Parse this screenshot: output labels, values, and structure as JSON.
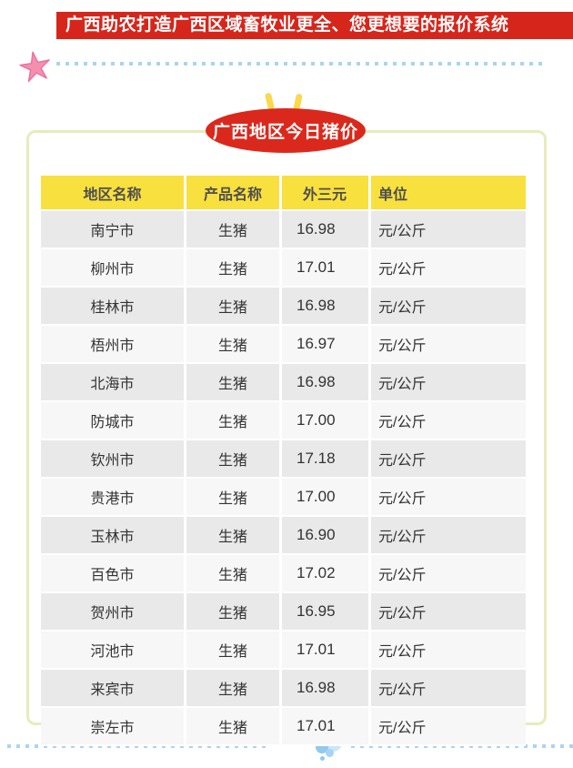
{
  "banner": {
    "text": "广西助农打造广西区域畜牧业更全、您更想要的报价系统"
  },
  "badge": {
    "label": "广西地区今日猪价"
  },
  "chart_data": {
    "type": "table",
    "title": "广西地区今日猪价",
    "columns": [
      "地区名称",
      "产品名称",
      "外三元",
      "单位"
    ],
    "rows": [
      [
        "南宁市",
        "生猪",
        "16.98",
        "元/公斤"
      ],
      [
        "柳州市",
        "生猪",
        "17.01",
        "元/公斤"
      ],
      [
        "桂林市",
        "生猪",
        "16.98",
        "元/公斤"
      ],
      [
        "梧州市",
        "生猪",
        "16.97",
        "元/公斤"
      ],
      [
        "北海市",
        "生猪",
        "16.98",
        "元/公斤"
      ],
      [
        "防城市",
        "生猪",
        "17.00",
        "元/公斤"
      ],
      [
        "钦州市",
        "生猪",
        "17.18",
        "元/公斤"
      ],
      [
        "贵港市",
        "生猪",
        "17.00",
        "元/公斤"
      ],
      [
        "玉林市",
        "生猪",
        "16.90",
        "元/公斤"
      ],
      [
        "百色市",
        "生猪",
        "17.02",
        "元/公斤"
      ],
      [
        "贺州市",
        "生猪",
        "16.95",
        "元/公斤"
      ],
      [
        "河池市",
        "生猪",
        "17.01",
        "元/公斤"
      ],
      [
        "来宾市",
        "生猪",
        "16.98",
        "元/公斤"
      ],
      [
        "崇左市",
        "生猪",
        "17.01",
        "元/公斤"
      ]
    ]
  },
  "colors": {
    "banner_red": "#d6261c",
    "badge_red": "#da291c",
    "header_yellow": "#f8e03e",
    "tick_yellow": "#f9d94f",
    "panel_border_green": "#e6ecbc",
    "row_gray": "#e9e9e9",
    "row_light": "#f7f7f7",
    "dot_blue": "#aad4f0",
    "bubble_light_blue": "#c9e7fb",
    "bubble_mid_blue": "#92c9ee",
    "star_pink": "#f48fb0"
  },
  "icons": [
    "starfish-icon",
    "quote-tick-icon",
    "bubbles-icon"
  ]
}
